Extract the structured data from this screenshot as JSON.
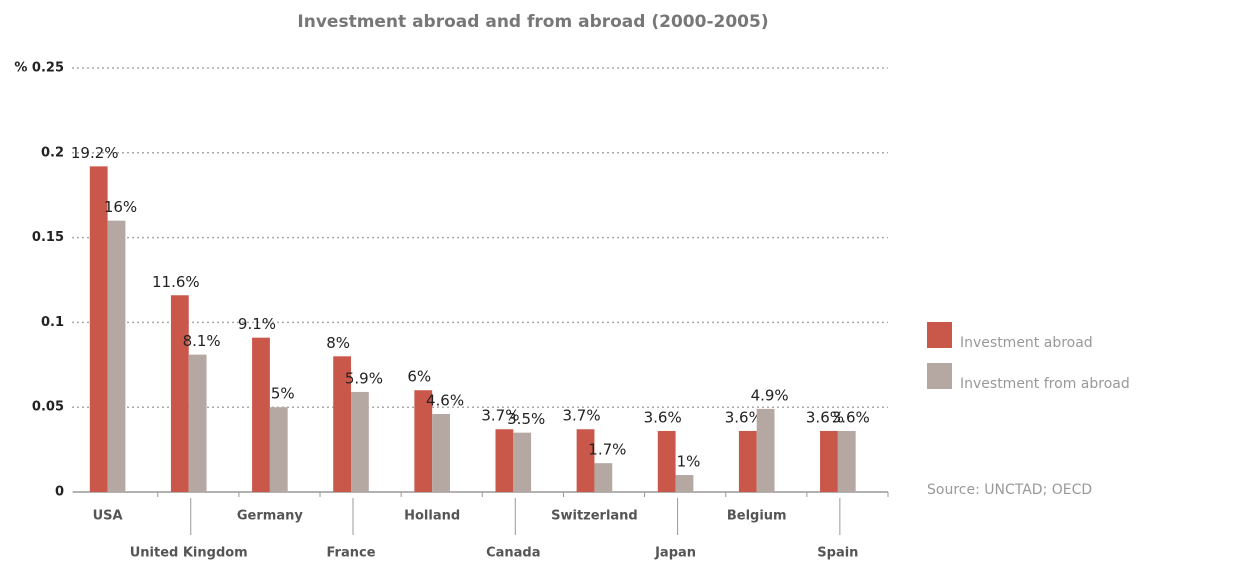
{
  "chart_data": {
    "type": "bar",
    "title": "Investment abroad and from abroad (2000-2005)",
    "categories": [
      "USA",
      "United Kingdom",
      "Germany",
      "France",
      "Holland",
      "Canada",
      "Switzerland",
      "Japan",
      "Belgium",
      "Spain"
    ],
    "series": [
      {
        "name": "Investment abroad",
        "color": "#c9574a",
        "values": [
          0.192,
          0.116,
          0.091,
          0.08,
          0.06,
          0.037,
          0.037,
          0.036,
          0.036,
          0.036
        ],
        "value_labels": [
          "19.2%",
          "11.6%",
          "9.1%",
          "8%",
          "6%",
          "3.7%",
          "3.7%",
          "3.6%",
          "3.6%",
          "3.6%"
        ]
      },
      {
        "name": "Investment from abroad",
        "color": "#b5a8a3",
        "values": [
          0.16,
          0.081,
          0.05,
          0.059,
          0.046,
          0.035,
          0.017,
          0.01,
          0.049,
          0.036
        ],
        "value_labels": [
          "16%",
          "8.1%",
          "5%",
          "5.9%",
          "4.6%",
          "3.5%",
          "1.7%",
          "1%",
          "4.9%",
          "3.6%"
        ]
      }
    ],
    "ylim": [
      0,
      0.25
    ],
    "yticks": [
      0,
      0.05,
      0.1,
      0.15,
      0.2,
      {
        "value": 0.25,
        "label": "% 0.25"
      }
    ],
    "grid": true,
    "legend": "right",
    "source": "Source: UNCTAD; OECD"
  }
}
